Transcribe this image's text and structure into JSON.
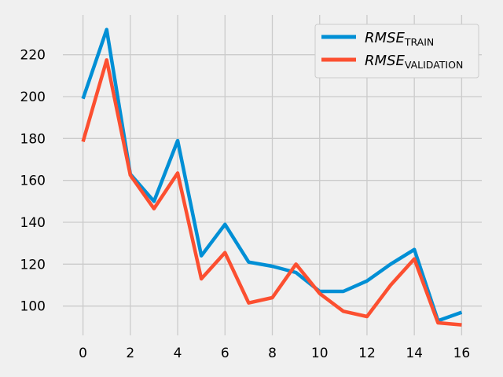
{
  "chart_data": {
    "type": "line",
    "title": "",
    "xlabel": "",
    "ylabel": "",
    "x": [
      0,
      1,
      2,
      3,
      4,
      5,
      6,
      7,
      8,
      9,
      10,
      11,
      12,
      13,
      14,
      15,
      16
    ],
    "series": [
      {
        "name": "RMSE",
        "subscript": "TRAIN",
        "color": "#008fd5",
        "values": [
          199,
          232,
          163,
          150,
          179,
          124,
          139,
          121,
          119,
          116,
          107,
          107,
          112,
          120,
          127,
          93,
          97
        ]
      },
      {
        "name": "RMSE",
        "subscript": "VALIDATION",
        "color": "#fc4f30",
        "values": [
          178.5,
          217.5,
          162.5,
          146.5,
          163.5,
          113,
          125.5,
          101.5,
          104,
          120,
          106,
          97.5,
          95,
          110,
          122.5,
          92,
          91
        ]
      }
    ],
    "x_ticks": [
      0,
      2,
      4,
      6,
      8,
      10,
      12,
      14,
      16
    ],
    "y_ticks": [
      100,
      120,
      140,
      160,
      180,
      200,
      220
    ],
    "xlim": [
      -0.85,
      16.85
    ],
    "ylim": [
      86,
      239
    ],
    "grid": true,
    "legend_position": "top-right",
    "background": "#f0f0f0",
    "grid_color": "#cbcbcb"
  }
}
